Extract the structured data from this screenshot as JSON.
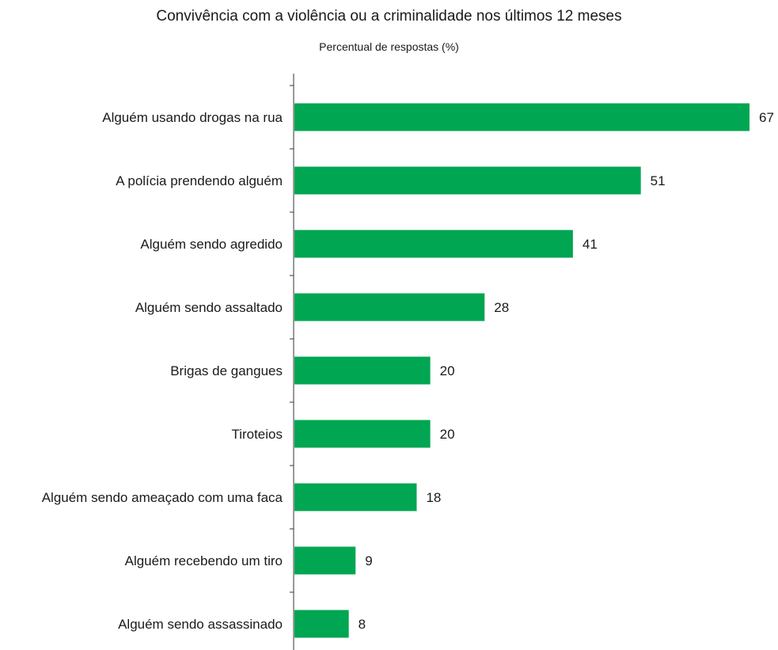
{
  "chart_data": {
    "type": "bar",
    "orientation": "horizontal",
    "title": "Convivência com a violência ou a criminalidade nos últimos 12 meses",
    "subtitle": "Percentual de respostas (%)",
    "xlabel": "",
    "ylabel": "",
    "categories": [
      "Alguém usando drogas na rua",
      "A polícia prendendo alguém",
      "Alguém sendo agredido",
      "Alguém sendo assaltado",
      "Brigas de gangues",
      "Tiroteios",
      "Alguém sendo ameaçado com uma faca",
      "Alguém recebendo um tiro",
      "Alguém sendo assassinado"
    ],
    "values": [
      67,
      51,
      41,
      28,
      20,
      20,
      18,
      9,
      8
    ],
    "xlim": [
      0,
      67
    ],
    "grid": false,
    "legend": "none",
    "bar_color": "#00a651"
  }
}
